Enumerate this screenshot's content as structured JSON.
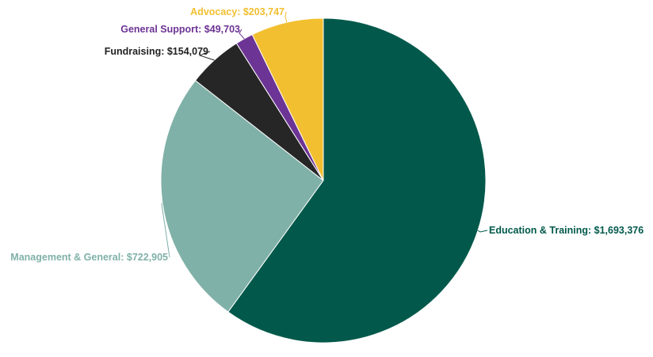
{
  "chart_data": {
    "type": "pie",
    "title": "",
    "slices": [
      {
        "label": "Education & Training",
        "value": 1693376,
        "display": "Education & Training: $1,693,376",
        "color": "#02594b"
      },
      {
        "label": "Management & General",
        "value": 722905,
        "display": "Management & General: $722,905",
        "color": "#80b1a8"
      },
      {
        "label": "Fundraising",
        "value": 154079,
        "display": "Fundraising: $154,079",
        "color": "#262626"
      },
      {
        "label": "General Support",
        "value": 49703,
        "display": "General Support: $49,703",
        "color": "#6c3494"
      },
      {
        "label": "Advocacy",
        "value": 203747,
        "display": "Advocacy: $203,747",
        "color": "#f2bf30"
      }
    ],
    "start_angle_deg": 0,
    "direction": "clockwise",
    "legend": "none",
    "label_style": "outside with leader lines"
  },
  "colors": {
    "background": "#ffffff",
    "slice_border": "#ffffff",
    "label_text": {
      "Fundraising": "#222222"
    }
  }
}
